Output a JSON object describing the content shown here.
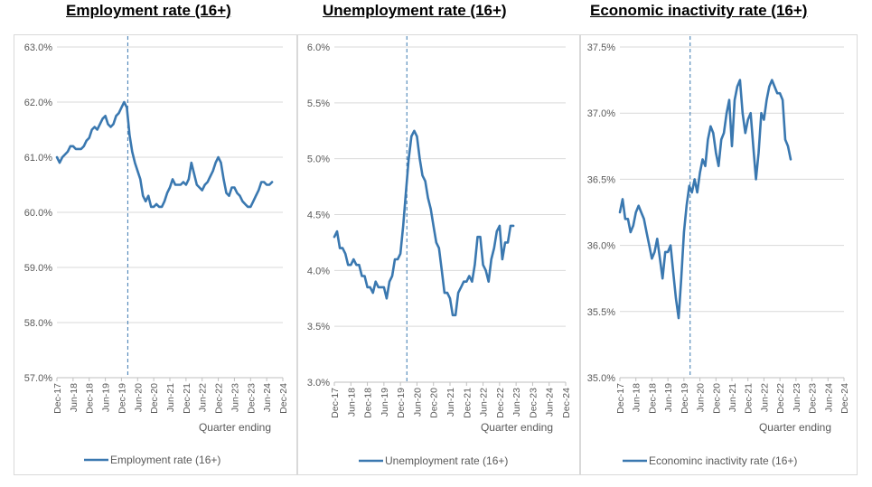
{
  "colors": {
    "series": "#3a78b0",
    "grid": "#d9d9d9",
    "axis_text": "#595959",
    "marker": "#3a78b0"
  },
  "chart_data": [
    {
      "type": "line",
      "title": "Employment rate (16+)",
      "xlabel": "Quarter ending",
      "ylabel": "",
      "ylim": [
        57.0,
        63.0
      ],
      "yticks": [
        "57.0%",
        "58.0%",
        "59.0%",
        "60.0%",
        "61.0%",
        "62.0%",
        "63.0%"
      ],
      "xticks": [
        "Dec-17",
        "Jun-18",
        "Dec-18",
        "Jun-19",
        "Dec-19",
        "Jun-20",
        "Dec-20",
        "Jun-21",
        "Dec-21",
        "Jun-22",
        "Dec-22",
        "Jun-23",
        "Dec-23",
        "Jun-24",
        "Dec-24"
      ],
      "vline_after": "Feb-20",
      "legend": "bottom",
      "series": [
        {
          "name": "Employment rate (16+)",
          "x": [
            "Dec-17",
            "Jan-18",
            "Feb-18",
            "Mar-18",
            "Apr-18",
            "May-18",
            "Jun-18",
            "Jul-18",
            "Aug-18",
            "Sep-18",
            "Oct-18",
            "Nov-18",
            "Dec-18",
            "Jan-19",
            "Feb-19",
            "Mar-19",
            "Apr-19",
            "May-19",
            "Jun-19",
            "Jul-19",
            "Aug-19",
            "Sep-19",
            "Oct-19",
            "Nov-19",
            "Dec-19",
            "Jan-20",
            "Feb-20",
            "Mar-20",
            "Apr-20",
            "May-20",
            "Jun-20",
            "Jul-20",
            "Aug-20",
            "Sep-20",
            "Oct-20",
            "Nov-20",
            "Dec-20",
            "Jan-21",
            "Feb-21",
            "Mar-21",
            "Apr-21",
            "May-21",
            "Jun-21",
            "Jul-21",
            "Aug-21",
            "Sep-21",
            "Oct-21",
            "Nov-21",
            "Dec-21",
            "Jan-22",
            "Feb-22",
            "Mar-22",
            "Apr-22",
            "May-22",
            "Jun-22",
            "Jul-22",
            "Aug-22",
            "Sep-22",
            "Oct-22",
            "Nov-22",
            "Dec-22",
            "Jan-23",
            "Feb-23",
            "Mar-23",
            "Apr-23",
            "May-23",
            "Jun-23",
            "Jul-23",
            "Aug-23",
            "Sep-23",
            "Oct-23",
            "Nov-23",
            "Dec-23",
            "Jan-24",
            "Feb-24",
            "Mar-24",
            "Apr-24",
            "May-24",
            "Jun-24",
            "Jul-24",
            "Aug-24",
            "Sep-24",
            "Oct-24",
            "Nov-24",
            "Dec-24"
          ],
          "values": [
            61.0,
            60.9,
            61.0,
            61.05,
            61.1,
            61.2,
            61.2,
            61.15,
            61.15,
            61.15,
            61.2,
            61.3,
            61.35,
            61.5,
            61.55,
            61.5,
            61.6,
            61.7,
            61.75,
            61.6,
            61.55,
            61.6,
            61.75,
            61.8,
            61.9,
            62.0,
            61.9,
            61.4,
            61.1,
            60.9,
            60.75,
            60.6,
            60.3,
            60.2,
            60.3,
            60.1,
            60.1,
            60.15,
            60.1,
            60.1,
            60.2,
            60.35,
            60.45,
            60.6,
            60.5,
            60.5,
            60.5,
            60.55,
            60.5,
            60.6,
            60.9,
            60.7,
            60.5,
            60.45,
            60.4,
            60.5,
            60.55,
            60.65,
            60.75,
            60.9,
            61.0,
            60.9,
            60.6,
            60.35,
            60.3,
            60.45,
            60.45,
            60.35,
            60.3,
            60.2,
            60.15,
            60.1,
            60.1,
            60.2,
            60.3,
            60.4,
            60.55,
            60.55,
            60.5,
            60.5,
            60.55,
            null,
            null,
            null,
            null
          ]
        }
      ]
    },
    {
      "type": "line",
      "title": "Unemployment rate (16+)",
      "xlabel": "Quarter ending",
      "ylabel": "",
      "ylim": [
        3.0,
        6.0
      ],
      "yticks": [
        "3.0%",
        "3.5%",
        "4.0%",
        "4.5%",
        "5.0%",
        "5.5%",
        "6.0%"
      ],
      "xticks": [
        "Dec-17",
        "Jun-18",
        "Dec-18",
        "Jun-19",
        "Dec-19",
        "Jun-20",
        "Dec-20",
        "Jun-21",
        "Dec-21",
        "Jun-22",
        "Dec-22",
        "Jun-23",
        "Dec-23",
        "Jun-24",
        "Dec-24"
      ],
      "vline_after": "Feb-20",
      "legend": "bottom",
      "series": [
        {
          "name": "Unemployment rate (16+)",
          "x": [
            "Dec-17",
            "Jan-18",
            "Feb-18",
            "Mar-18",
            "Apr-18",
            "May-18",
            "Jun-18",
            "Jul-18",
            "Aug-18",
            "Sep-18",
            "Oct-18",
            "Nov-18",
            "Dec-18",
            "Jan-19",
            "Feb-19",
            "Mar-19",
            "Apr-19",
            "May-19",
            "Jun-19",
            "Jul-19",
            "Aug-19",
            "Sep-19",
            "Oct-19",
            "Nov-19",
            "Dec-19",
            "Jan-20",
            "Feb-20",
            "Mar-20",
            "Apr-20",
            "May-20",
            "Jun-20",
            "Jul-20",
            "Aug-20",
            "Sep-20",
            "Oct-20",
            "Nov-20",
            "Dec-20",
            "Jan-21",
            "Feb-21",
            "Mar-21",
            "Apr-21",
            "May-21",
            "Jun-21",
            "Jul-21",
            "Aug-21",
            "Sep-21",
            "Oct-21",
            "Nov-21",
            "Dec-21",
            "Jan-22",
            "Feb-22",
            "Mar-22",
            "Apr-22",
            "May-22",
            "Jun-22",
            "Jul-22",
            "Aug-22",
            "Sep-22",
            "Oct-22",
            "Nov-22",
            "Dec-22",
            "Jan-23",
            "Feb-23",
            "Mar-23",
            "Apr-23",
            "May-23",
            "Jun-23",
            "Jul-23",
            "Aug-23",
            "Sep-23",
            "Oct-23",
            "Nov-23",
            "Dec-23",
            "Jan-24",
            "Feb-24",
            "Mar-24",
            "Apr-24",
            "May-24",
            "Jun-24",
            "Jul-24",
            "Aug-24",
            "Sep-24",
            "Oct-24",
            "Nov-24",
            "Dec-24"
          ],
          "values": [
            4.3,
            4.35,
            4.2,
            4.2,
            4.15,
            4.05,
            4.05,
            4.1,
            4.05,
            4.05,
            3.95,
            3.95,
            3.85,
            3.85,
            3.8,
            3.9,
            3.85,
            3.85,
            3.85,
            3.75,
            3.9,
            3.95,
            4.1,
            4.1,
            4.15,
            4.4,
            4.7,
            5.0,
            5.2,
            5.25,
            5.2,
            5.0,
            4.85,
            4.8,
            4.65,
            4.55,
            4.4,
            4.25,
            4.2,
            4.0,
            3.8,
            3.8,
            3.75,
            3.6,
            3.6,
            3.8,
            3.85,
            3.9,
            3.9,
            3.95,
            3.9,
            4.05,
            4.3,
            4.3,
            4.05,
            4.0,
            3.9,
            4.1,
            4.2,
            4.35,
            4.4,
            4.1,
            4.25,
            4.25,
            4.4,
            4.4,
            null,
            null,
            null,
            null,
            null,
            null,
            null,
            null,
            null,
            null,
            null,
            null,
            null,
            null,
            null,
            null,
            null,
            null,
            null
          ]
        }
      ]
    },
    {
      "type": "line",
      "title": "Economic inactivity rate (16+)",
      "xlabel": "Quarter ending",
      "ylabel": "",
      "ylim": [
        35.0,
        37.5
      ],
      "yticks": [
        "35.0%",
        "35.5%",
        "36.0%",
        "36.5%",
        "37.0%",
        "37.5%"
      ],
      "xticks": [
        "Dec-17",
        "Jun-18",
        "Dec-18",
        "Jun-19",
        "Dec-19",
        "Jun-20",
        "Dec-20",
        "Jun-21",
        "Dec-21",
        "Jun-22",
        "Dec-22",
        "Jun-23",
        "Dec-23",
        "Jun-24",
        "Dec-24"
      ],
      "vline_after": "Feb-20",
      "legend": "bottom",
      "series": [
        {
          "name": "Econominc inactivity rate (16+)",
          "x": [
            "Dec-17",
            "Jan-18",
            "Feb-18",
            "Mar-18",
            "Apr-18",
            "May-18",
            "Jun-18",
            "Jul-18",
            "Aug-18",
            "Sep-18",
            "Oct-18",
            "Nov-18",
            "Dec-18",
            "Jan-19",
            "Feb-19",
            "Mar-19",
            "Apr-19",
            "May-19",
            "Jun-19",
            "Jul-19",
            "Aug-19",
            "Sep-19",
            "Oct-19",
            "Nov-19",
            "Dec-19",
            "Jan-20",
            "Feb-20",
            "Mar-20",
            "Apr-20",
            "May-20",
            "Jun-20",
            "Jul-20",
            "Aug-20",
            "Sep-20",
            "Oct-20",
            "Nov-20",
            "Dec-20",
            "Jan-21",
            "Feb-21",
            "Mar-21",
            "Apr-21",
            "May-21",
            "Jun-21",
            "Jul-21",
            "Aug-21",
            "Sep-21",
            "Oct-21",
            "Nov-21",
            "Dec-21",
            "Jan-22",
            "Feb-22",
            "Mar-22",
            "Apr-22",
            "May-22",
            "Jun-22",
            "Jul-22",
            "Aug-22",
            "Sep-22",
            "Oct-22",
            "Nov-22",
            "Dec-22",
            "Jan-23",
            "Feb-23",
            "Mar-23",
            "Apr-23",
            "May-23",
            "Jun-23",
            "Jul-23",
            "Aug-23",
            "Sep-23",
            "Oct-23",
            "Nov-23",
            "Dec-23",
            "Jan-24",
            "Feb-24",
            "Mar-24",
            "Apr-24",
            "May-24",
            "Jun-24",
            "Jul-24",
            "Aug-24",
            "Sep-24",
            "Oct-24",
            "Nov-24",
            "Dec-24"
          ],
          "values": [
            36.25,
            36.35,
            36.2,
            36.2,
            36.1,
            36.15,
            36.25,
            36.3,
            36.25,
            36.2,
            36.1,
            36.0,
            35.9,
            35.95,
            36.05,
            35.9,
            35.75,
            35.95,
            35.95,
            36.0,
            35.8,
            35.6,
            35.45,
            35.75,
            36.1,
            36.3,
            36.45,
            36.4,
            36.5,
            36.4,
            36.55,
            36.65,
            36.6,
            36.8,
            36.9,
            36.85,
            36.7,
            36.6,
            36.8,
            36.85,
            37.0,
            37.1,
            36.75,
            37.1,
            37.2,
            37.25,
            37.0,
            36.85,
            36.95,
            37.0,
            36.75,
            36.5,
            36.7,
            37.0,
            36.95,
            37.1,
            37.2,
            37.25,
            37.2,
            37.15,
            37.15,
            37.1,
            36.8,
            36.75,
            36.65,
            null,
            null,
            null,
            null,
            null,
            null,
            null,
            null,
            null,
            null,
            null,
            null,
            null,
            null,
            null,
            null,
            null,
            null,
            null,
            null
          ]
        }
      ]
    }
  ]
}
